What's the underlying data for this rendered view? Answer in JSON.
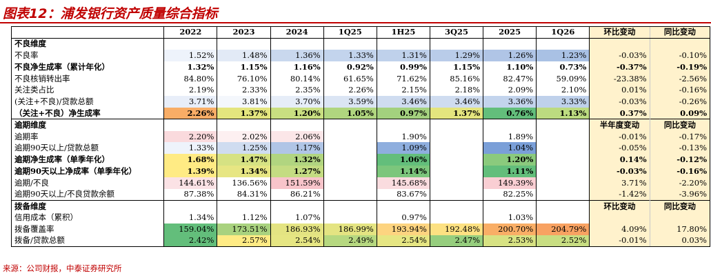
{
  "title": "图表12：浦发银行资产质量综合指标",
  "columns": [
    "2022",
    "2023",
    "2024",
    "1Q25",
    "1H25",
    "3Q25",
    "2025",
    "1Q26",
    "环比变动",
    "同比变动"
  ],
  "sections": [
    {
      "name": "不良维度",
      "chg_headers": [
        "",
        ""
      ],
      "rows": [
        {
          "label": "不良率",
          "bold": false,
          "values": [
            "1.52%",
            "1.48%",
            "1.36%",
            "1.33%",
            "1.31%",
            "1.29%",
            "1.26%",
            "1.23%"
          ],
          "changes": [
            "-0.03%",
            "-0.10%"
          ],
          "colors": [
            "#eef3fb",
            "#e2eaf6",
            "#c9d8ee",
            "#c3d4ed",
            "#bfd1eb",
            "#b9cce9",
            "#b0c5e6",
            "#a9c1e4"
          ]
        },
        {
          "label": "不良净生成率（累计年化）",
          "bold": true,
          "values": [
            "1.32%",
            "1.15%",
            "1.16%",
            "0.92%",
            "0.99%",
            "1.15%",
            "1.10%",
            "0.73%"
          ],
          "changes": [
            "-0.37%",
            "-0.19%"
          ],
          "colors": [
            "#ffffff",
            "#ffffff",
            "#ffffff",
            "#ffffff",
            "#ffffff",
            "#ffffff",
            "#ffffff",
            "#ffffff"
          ]
        },
        {
          "label": "不良核销转出率",
          "bold": false,
          "values": [
            "84.80%",
            "76.10%",
            "80.14%",
            "61.65%",
            "71.62%",
            "85.16%",
            "82.47%",
            "59.09%"
          ],
          "changes": [
            "-23.38%",
            "-2.56%"
          ],
          "colors": [
            "#ffffff",
            "#ffffff",
            "#ffffff",
            "#ffffff",
            "#ffffff",
            "#ffffff",
            "#ffffff",
            "#ffffff"
          ]
        },
        {
          "label": "关注类占比",
          "bold": false,
          "values": [
            "2.19%",
            "2.33%",
            "2.35%",
            "2.26%",
            "2.15%",
            "2.18%",
            "2.09%",
            "2.10%"
          ],
          "changes": [
            "0.01%",
            "-0.16%"
          ],
          "colors": [
            "#ffffff",
            "#ffffff",
            "#ffffff",
            "#ffffff",
            "#ffffff",
            "#ffffff",
            "#ffffff",
            "#ffffff"
          ]
        },
        {
          "label": "(关注+不良)/贷款总额",
          "bold": false,
          "values": [
            "3.71%",
            "3.81%",
            "3.70%",
            "3.59%",
            "3.46%",
            "3.46%",
            "3.36%",
            "3.33%"
          ],
          "changes": [
            "-0.03%",
            "-0.26%"
          ],
          "colors": [
            "#e8eef9",
            "#f4f7fc",
            "#e6edf8",
            "#dbe5f4",
            "#cfdcf0",
            "#cfdcf0",
            "#c3d4ed",
            "#bfd1eb"
          ]
        },
        {
          "label": "（关注+不良）净生成率",
          "bold": true,
          "values": [
            "2.26%",
            "1.37%",
            "1.20%",
            "1.05%",
            "0.97%",
            "1.37%",
            "0.76%",
            "1.13%"
          ],
          "changes": [
            "0.37%",
            "0.09%"
          ],
          "colors": [
            "#f8ad66",
            "#e4e57e",
            "#c9df81",
            "#b0d67f",
            "#a3d17e",
            "#e4e57e",
            "#63be7b",
            "#bcdb80"
          ]
        }
      ]
    },
    {
      "name": "逾期维度",
      "chg_headers": [
        "半年度变动",
        "同比变动"
      ],
      "rows": [
        {
          "label": "逾期率",
          "bold": false,
          "values": [
            "2.20%",
            "2.02%",
            "2.06%",
            "",
            "1.90%",
            "",
            "1.89%",
            ""
          ],
          "changes": [
            "-0.01%",
            "-0.17%"
          ],
          "colors": [
            "#fadadd",
            "#fdf0f1",
            "#fbe6e8",
            "#ffffff",
            "#ffffff",
            "#ffffff",
            "#ffffff",
            "#ffffff"
          ]
        },
        {
          "label": "逾期90天以上/贷款总额",
          "bold": false,
          "values": [
            "1.33%",
            "1.25%",
            "1.17%",
            "",
            "1.09%",
            "",
            "1.04%",
            ""
          ],
          "changes": [
            "-0.05%",
            "-0.13%"
          ],
          "colors": [
            "#eef3fb",
            "#cfdcf0",
            "#b0c5e6",
            "#ffffff",
            "#8eaede",
            "#ffffff",
            "#7a9fd8",
            "#ffffff"
          ]
        },
        {
          "label": "逾期净生成率（单季年化）",
          "bold": true,
          "values": [
            "1.68%",
            "1.47%",
            "1.32%",
            "",
            "1.06%",
            "",
            "1.20%",
            ""
          ],
          "changes": [
            "0.14%",
            "-0.12%"
          ],
          "colors": [
            "#ffeb84",
            "#d6e283",
            "#b1d580",
            "#ffffff",
            "#63be7b",
            "#ffffff",
            "#8bca7d",
            "#ffffff"
          ]
        },
        {
          "label": "逾期90天以上净成率（单季年化）",
          "bold": true,
          "values": [
            "1.39%",
            "1.34%",
            "1.27%",
            "",
            "1.14%",
            "",
            "1.11%",
            ""
          ],
          "changes": [
            "-0.03%",
            "-0.16%"
          ],
          "colors": [
            "#ffeb84",
            "#e7e683",
            "#c4dc82",
            "#ffffff",
            "#7cc67c",
            "#ffffff",
            "#63be7b",
            "#ffffff"
          ]
        },
        {
          "label": "逾期/不良",
          "bold": false,
          "values": [
            "144.61%",
            "136.56%",
            "151.59%",
            "",
            "145.68%",
            "",
            "149.39%",
            ""
          ],
          "changes": [
            "3.71%",
            "-2.20%"
          ],
          "colors": [
            "#fbe2e5",
            "#ffffff",
            "#f8c4ca",
            "#ffffff",
            "#fadcdf",
            "#ffffff",
            "#f9ced3",
            "#ffffff"
          ]
        },
        {
          "label": "逾期90天以上/不良贷款余额",
          "bold": false,
          "values": [
            "87.38%",
            "84.31%",
            "86.21%",
            "",
            "83.67%",
            "",
            "82.25%",
            ""
          ],
          "changes": [
            "-1.42%",
            "-3.96%"
          ],
          "colors": [
            "#ffffff",
            "#ffffff",
            "#ffffff",
            "#ffffff",
            "#ffffff",
            "#ffffff",
            "#ffffff",
            "#ffffff"
          ]
        }
      ]
    },
    {
      "name": "拨备维度",
      "chg_headers": [
        "环比变动",
        "同比变动"
      ],
      "rows": [
        {
          "label": "信用成本（累积）",
          "bold": false,
          "values": [
            "1.34%",
            "1.12%",
            "1.07%",
            "",
            "0.97%",
            "",
            "1.03%",
            ""
          ],
          "changes": [
            "",
            ""
          ],
          "colors": [
            "#ffffff",
            "#ffffff",
            "#ffffff",
            "#ffffff",
            "#ffffff",
            "#ffffff",
            "#ffffff",
            "#ffffff"
          ]
        },
        {
          "label": "拨备覆盖率",
          "bold": false,
          "values": [
            "159.04%",
            "173.51%",
            "186.93%",
            "186.99%",
            "193.94%",
            "192.48%",
            "200.70%",
            "204.79%"
          ],
          "changes": [
            "4.09%",
            "17.80%"
          ],
          "colors": [
            "#63be7b",
            "#a9d27f",
            "#e4e482",
            "#e4e482",
            "#fdd480",
            "#fde182",
            "#f9ae66",
            "#f8a262"
          ]
        },
        {
          "label": "拨备/贷款总额",
          "bold": false,
          "values": [
            "2.42%",
            "2.57%",
            "2.54%",
            "2.49%",
            "2.54%",
            "2.47%",
            "2.53%",
            "2.52%"
          ],
          "changes": [
            "-0.01%",
            "0.03%"
          ],
          "colors": [
            "#63be7b",
            "#ffeb84",
            "#e6e683",
            "#b6d880",
            "#e6e683",
            "#96ce7e",
            "#d7e283",
            "#c8de82"
          ]
        }
      ]
    }
  ],
  "source": "来源：公司财报，中泰证券研究所",
  "colors": {
    "title_red": "#c00000",
    "change_bg": "#fff2cc"
  }
}
